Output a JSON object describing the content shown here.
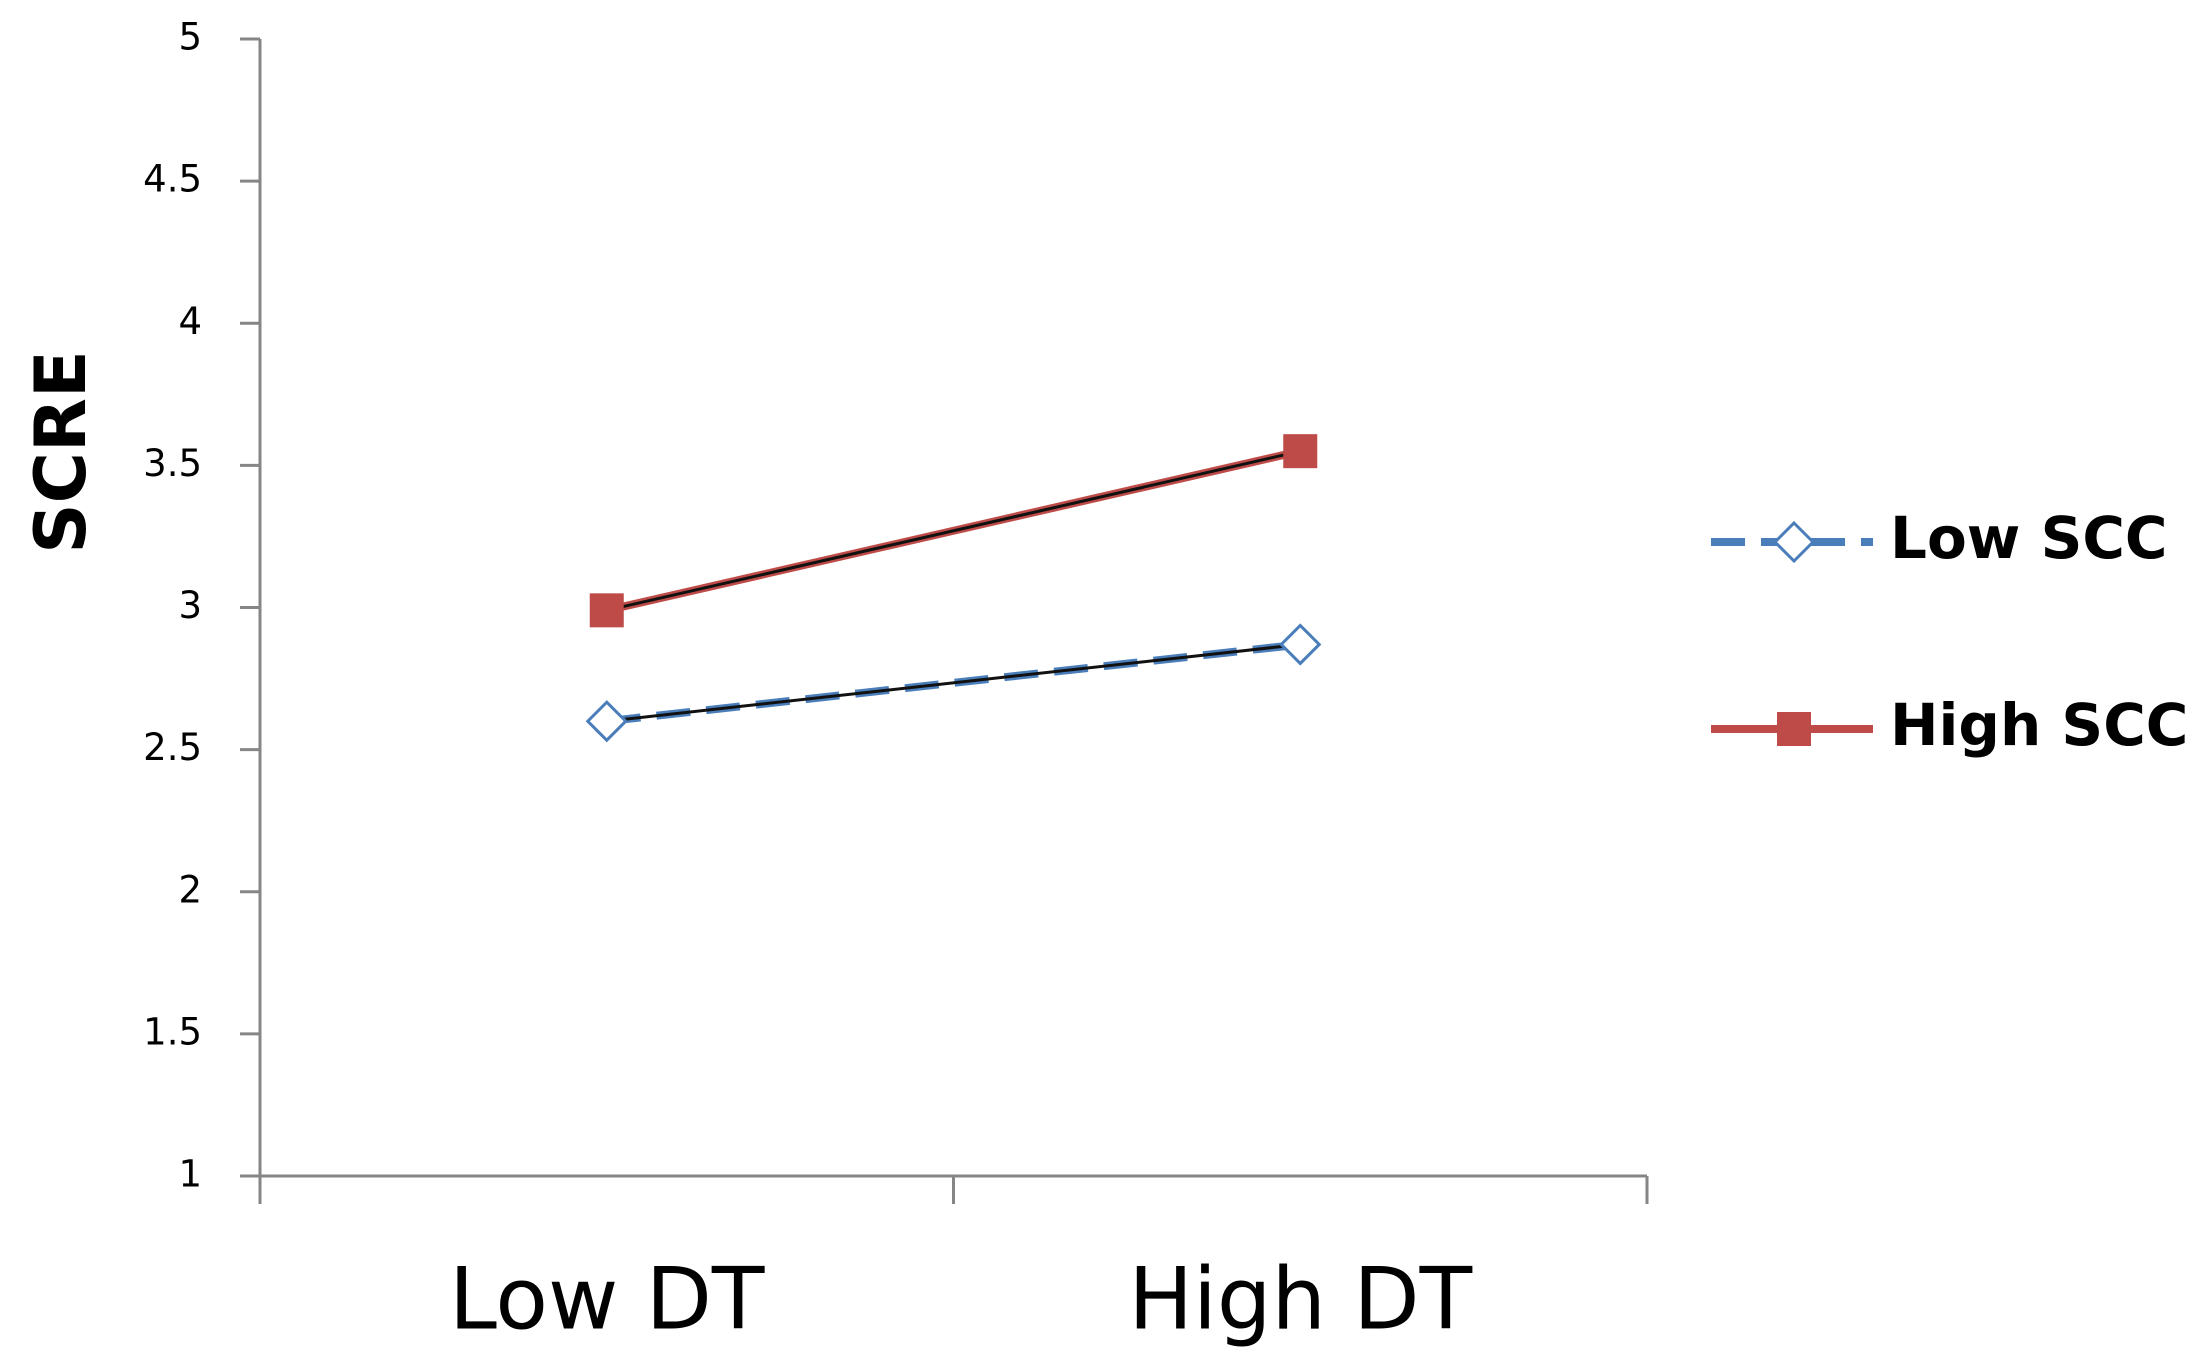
{
  "chart_data": {
    "type": "line",
    "y_label": "SCRE",
    "categories": [
      "Low DT",
      "High DT"
    ],
    "series": [
      {
        "name": "Low SCC",
        "color": "#4a7ebb",
        "line_style": "dashed",
        "marker": "diamond-open",
        "values": [
          2.6,
          2.87
        ]
      },
      {
        "name": "High SCC",
        "color": "#be4b48",
        "line_style": "solid",
        "marker": "square",
        "values": [
          2.99,
          3.55
        ]
      }
    ],
    "ylim": [
      1,
      5
    ],
    "yticks": [
      1,
      1.5,
      2,
      2.5,
      3,
      3.5,
      4,
      4.5,
      5
    ],
    "grid": false,
    "legend": "right"
  }
}
